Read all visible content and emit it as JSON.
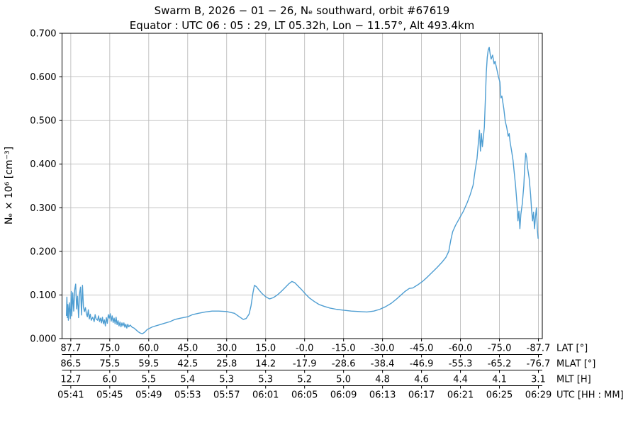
{
  "chart_data": {
    "type": "line",
    "title": "Swarm B,  2026 − 01 − 26,  Nₑ southward,  orbit #67619",
    "subtitle": "Equator :  UTC 06 : 05 : 29,  LT 05.32h,  Lon  − 11.57°,  Alt 493.4km",
    "ylabel": "Nₑ × 10⁶ [cm⁻³]",
    "ylim": [
      0.0,
      0.7
    ],
    "yticks": {
      "values": [
        0.0,
        0.1,
        0.2,
        0.3,
        0.4,
        0.5,
        0.6,
        0.7
      ],
      "labels": [
        "0.000",
        "0.100",
        "0.200",
        "0.300",
        "0.400",
        "0.500",
        "0.600",
        "0.700"
      ]
    },
    "grid": true,
    "legend": "none",
    "line_color": "#4f9ed2",
    "grid_color": "#bcbcbc",
    "spine_color": "#000000",
    "xlim_minutes": [
      -0.9,
      48.4
    ],
    "x_tick_minutes": [
      0,
      4,
      8,
      12,
      16,
      20,
      24,
      28,
      32,
      36,
      40,
      44,
      48
    ],
    "x_axis_rows": [
      {
        "name": "LAT [°]",
        "labels": [
          "87.7",
          "75.0",
          "60.0",
          "45.0",
          "30.0",
          "15.0",
          "-0.0",
          "-15.0",
          "-30.0",
          "-45.0",
          "-60.0",
          "-75.0",
          "-87.7"
        ]
      },
      {
        "name": "MLAT [°]",
        "labels": [
          "86.5",
          "75.5",
          "59.5",
          "42.5",
          "25.8",
          "14.2",
          "-17.9",
          "-28.6",
          "-38.4",
          "-46.9",
          "-55.3",
          "-65.2",
          "-76.7"
        ]
      },
      {
        "name": "MLT [H]",
        "labels": [
          "12.7",
          "6.0",
          "5.5",
          "5.4",
          "5.3",
          "5.3",
          "5.2",
          "5.0",
          "4.8",
          "4.6",
          "4.4",
          "4.1",
          "3.1"
        ]
      },
      {
        "name": "UTC [HH : MM]",
        "labels": [
          "05:41",
          "05:45",
          "05:49",
          "05:53",
          "05:57",
          "06:01",
          "06:05",
          "06:09",
          "06:13",
          "06:17",
          "06:21",
          "06:25",
          "06:29"
        ]
      }
    ],
    "series": [
      {
        "name": "Ne",
        "points": [
          [
            -0.45,
            0.053
          ],
          [
            -0.4,
            0.095
          ],
          [
            -0.35,
            0.048
          ],
          [
            -0.3,
            0.078
          ],
          [
            -0.25,
            0.042
          ],
          [
            -0.15,
            0.082
          ],
          [
            -0.05,
            0.046
          ],
          [
            0.0,
            0.07
          ],
          [
            0.05,
            0.108
          ],
          [
            0.1,
            0.052
          ],
          [
            0.2,
            0.105
          ],
          [
            0.3,
            0.063
          ],
          [
            0.4,
            0.112
          ],
          [
            0.5,
            0.125
          ],
          [
            0.6,
            0.068
          ],
          [
            0.7,
            0.097
          ],
          [
            0.8,
            0.048
          ],
          [
            0.9,
            0.104
          ],
          [
            1.0,
            0.118
          ],
          [
            1.1,
            0.054
          ],
          [
            1.2,
            0.122
          ],
          [
            1.3,
            0.072
          ],
          [
            1.4,
            0.062
          ],
          [
            1.5,
            0.071
          ],
          [
            1.6,
            0.057
          ],
          [
            1.7,
            0.05
          ],
          [
            1.8,
            0.066
          ],
          [
            1.9,
            0.045
          ],
          [
            2.0,
            0.056
          ],
          [
            2.1,
            0.042
          ],
          [
            2.25,
            0.049
          ],
          [
            2.4,
            0.039
          ],
          [
            2.5,
            0.055
          ],
          [
            2.6,
            0.045
          ],
          [
            2.75,
            0.042
          ],
          [
            2.85,
            0.052
          ],
          [
            2.95,
            0.039
          ],
          [
            3.05,
            0.047
          ],
          [
            3.15,
            0.036
          ],
          [
            3.25,
            0.049
          ],
          [
            3.35,
            0.034
          ],
          [
            3.45,
            0.043
          ],
          [
            3.55,
            0.029
          ],
          [
            3.65,
            0.048
          ],
          [
            3.75,
            0.035
          ],
          [
            3.85,
            0.055
          ],
          [
            3.95,
            0.047
          ],
          [
            4.05,
            0.057
          ],
          [
            4.15,
            0.04
          ],
          [
            4.25,
            0.052
          ],
          [
            4.35,
            0.037
          ],
          [
            4.45,
            0.047
          ],
          [
            4.55,
            0.034
          ],
          [
            4.65,
            0.049
          ],
          [
            4.75,
            0.032
          ],
          [
            4.85,
            0.041
          ],
          [
            4.95,
            0.029
          ],
          [
            5.05,
            0.038
          ],
          [
            5.15,
            0.027
          ],
          [
            5.25,
            0.036
          ],
          [
            5.35,
            0.029
          ],
          [
            5.45,
            0.036
          ],
          [
            5.55,
            0.026
          ],
          [
            5.65,
            0.033
          ],
          [
            5.75,
            0.024
          ],
          [
            5.85,
            0.033
          ],
          [
            5.95,
            0.027
          ],
          [
            6.1,
            0.031
          ],
          [
            6.3,
            0.026
          ],
          [
            6.5,
            0.024
          ],
          [
            6.7,
            0.02
          ],
          [
            6.9,
            0.016
          ],
          [
            7.1,
            0.013
          ],
          [
            7.35,
            0.011
          ],
          [
            7.6,
            0.015
          ],
          [
            7.85,
            0.021
          ],
          [
            8.4,
            0.027
          ],
          [
            9.0,
            0.031
          ],
          [
            9.6,
            0.035
          ],
          [
            10.2,
            0.039
          ],
          [
            10.7,
            0.044
          ],
          [
            11.3,
            0.047
          ],
          [
            12.0,
            0.05
          ],
          [
            12.5,
            0.055
          ],
          [
            13.1,
            0.058
          ],
          [
            13.8,
            0.061
          ],
          [
            14.5,
            0.063
          ],
          [
            15.2,
            0.063
          ],
          [
            16.0,
            0.062
          ],
          [
            16.8,
            0.058
          ],
          [
            17.3,
            0.05
          ],
          [
            17.7,
            0.044
          ],
          [
            18.0,
            0.046
          ],
          [
            18.3,
            0.056
          ],
          [
            18.5,
            0.075
          ],
          [
            18.7,
            0.105
          ],
          [
            18.85,
            0.122
          ],
          [
            19.05,
            0.119
          ],
          [
            19.3,
            0.112
          ],
          [
            19.6,
            0.104
          ],
          [
            20.0,
            0.096
          ],
          [
            20.4,
            0.091
          ],
          [
            20.8,
            0.094
          ],
          [
            21.2,
            0.1
          ],
          [
            21.6,
            0.108
          ],
          [
            22.0,
            0.117
          ],
          [
            22.4,
            0.126
          ],
          [
            22.7,
            0.131
          ],
          [
            23.0,
            0.128
          ],
          [
            23.3,
            0.121
          ],
          [
            23.7,
            0.112
          ],
          [
            24.1,
            0.102
          ],
          [
            24.5,
            0.093
          ],
          [
            25.0,
            0.085
          ],
          [
            25.5,
            0.078
          ],
          [
            26.0,
            0.074
          ],
          [
            26.6,
            0.07
          ],
          [
            27.3,
            0.067
          ],
          [
            28.0,
            0.065
          ],
          [
            28.8,
            0.063
          ],
          [
            29.6,
            0.062
          ],
          [
            30.4,
            0.061
          ],
          [
            31.1,
            0.063
          ],
          [
            31.7,
            0.067
          ],
          [
            32.3,
            0.073
          ],
          [
            32.9,
            0.081
          ],
          [
            33.4,
            0.09
          ],
          [
            33.9,
            0.1
          ],
          [
            34.3,
            0.108
          ],
          [
            34.75,
            0.115
          ],
          [
            35.1,
            0.116
          ],
          [
            35.6,
            0.123
          ],
          [
            36.1,
            0.131
          ],
          [
            36.6,
            0.141
          ],
          [
            37.1,
            0.152
          ],
          [
            37.6,
            0.163
          ],
          [
            38.1,
            0.175
          ],
          [
            38.5,
            0.186
          ],
          [
            38.8,
            0.2
          ],
          [
            39.0,
            0.225
          ],
          [
            39.2,
            0.245
          ],
          [
            39.5,
            0.26
          ],
          [
            39.9,
            0.276
          ],
          [
            40.3,
            0.292
          ],
          [
            40.7,
            0.312
          ],
          [
            41.0,
            0.33
          ],
          [
            41.3,
            0.352
          ],
          [
            41.5,
            0.385
          ],
          [
            41.7,
            0.413
          ],
          [
            41.85,
            0.452
          ],
          [
            41.95,
            0.478
          ],
          [
            42.05,
            0.43
          ],
          [
            42.15,
            0.47
          ],
          [
            42.25,
            0.44
          ],
          [
            42.35,
            0.462
          ],
          [
            42.45,
            0.484
          ],
          [
            42.55,
            0.545
          ],
          [
            42.65,
            0.61
          ],
          [
            42.75,
            0.645
          ],
          [
            42.85,
            0.662
          ],
          [
            42.95,
            0.668
          ],
          [
            43.05,
            0.652
          ],
          [
            43.15,
            0.641
          ],
          [
            43.3,
            0.65
          ],
          [
            43.45,
            0.63
          ],
          [
            43.55,
            0.636
          ],
          [
            43.7,
            0.621
          ],
          [
            43.9,
            0.6
          ],
          [
            44.05,
            0.588
          ],
          [
            44.15,
            0.552
          ],
          [
            44.25,
            0.556
          ],
          [
            44.45,
            0.527
          ],
          [
            44.6,
            0.498
          ],
          [
            44.75,
            0.484
          ],
          [
            44.9,
            0.464
          ],
          [
            45.0,
            0.47
          ],
          [
            45.1,
            0.45
          ],
          [
            45.25,
            0.43
          ],
          [
            45.4,
            0.408
          ],
          [
            45.5,
            0.385
          ],
          [
            45.65,
            0.352
          ],
          [
            45.8,
            0.31
          ],
          [
            45.9,
            0.27
          ],
          [
            46.0,
            0.292
          ],
          [
            46.1,
            0.252
          ],
          [
            46.2,
            0.285
          ],
          [
            46.35,
            0.31
          ],
          [
            46.5,
            0.35
          ],
          [
            46.6,
            0.395
          ],
          [
            46.7,
            0.425
          ],
          [
            46.8,
            0.415
          ],
          [
            46.9,
            0.39
          ],
          [
            47.05,
            0.368
          ],
          [
            47.2,
            0.33
          ],
          [
            47.3,
            0.295
          ],
          [
            47.4,
            0.27
          ],
          [
            47.5,
            0.29
          ],
          [
            47.6,
            0.252
          ],
          [
            47.7,
            0.28
          ],
          [
            47.8,
            0.3
          ],
          [
            47.9,
            0.248
          ],
          [
            47.97,
            0.23
          ]
        ]
      }
    ]
  }
}
